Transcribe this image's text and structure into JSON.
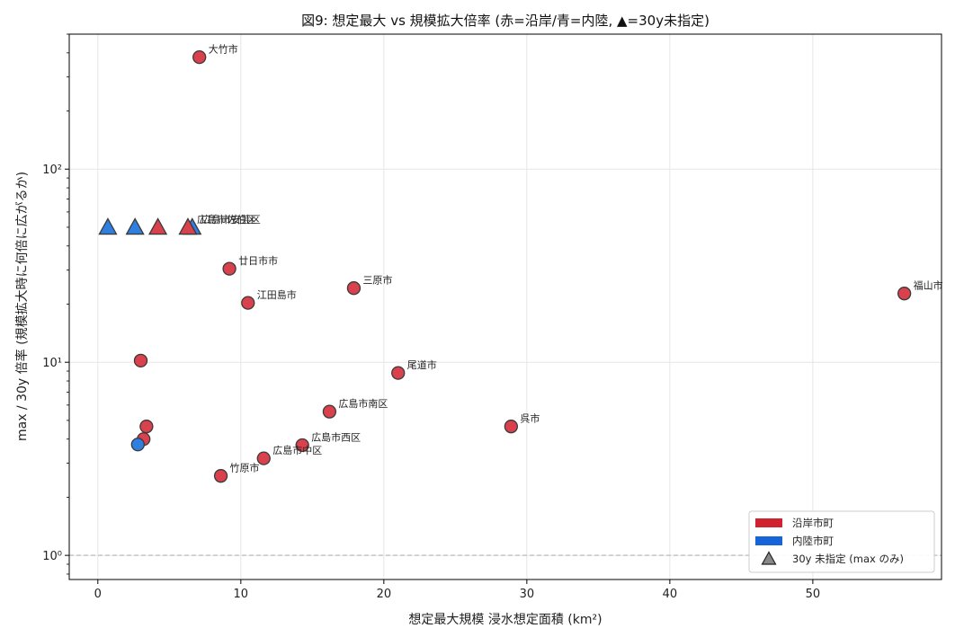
{
  "chart_data": {
    "type": "scatter",
    "title": "図9: 想定最大 vs 規模拡大倍率 (赤=沿岸/青=内陸, ▲=30y未指定)",
    "xlabel": "想定最大規模 浸水想定面積 (km²)",
    "ylabel": "max / 30y 倍率 (規模拡大時に何倍に広がるか)",
    "x_range": [
      -2,
      59
    ],
    "y_range": [
      0.75,
      500
    ],
    "y_scale": "log",
    "x_ticks": [
      0,
      10,
      20,
      30,
      40,
      50
    ],
    "y_ticks": [
      {
        "value": 1,
        "label": "10⁰"
      },
      {
        "value": 10,
        "label": "10¹"
      },
      {
        "value": 100,
        "label": "10²"
      }
    ],
    "grid": true,
    "reference_line": 1,
    "legend_position": "bottom-right",
    "legend": [
      {
        "label": "沿岸市町",
        "marker": "patch",
        "color": "#d1232f"
      },
      {
        "label": "内陸市町",
        "marker": "patch",
        "color": "#1565d8"
      },
      {
        "label": "30y 未指定 (max のみ)",
        "marker": "triangle",
        "color": "#888888"
      }
    ],
    "colors": {
      "coastal": "#d9414c",
      "inland": "#2f7fe0",
      "edge": "#3a3a3a",
      "ref": "#bbbbbb"
    },
    "points": [
      {
        "x": 7.1,
        "y": 380,
        "group": "coastal",
        "marker": "circle",
        "label": "大竹市"
      },
      {
        "x": 9.2,
        "y": 30.5,
        "group": "coastal",
        "marker": "circle",
        "label": "廿日市市"
      },
      {
        "x": 10.5,
        "y": 20.3,
        "group": "coastal",
        "marker": "circle",
        "label": "江田島市"
      },
      {
        "x": 17.9,
        "y": 24.2,
        "group": "coastal",
        "marker": "circle",
        "label": "三原市"
      },
      {
        "x": 56.4,
        "y": 22.7,
        "group": "coastal",
        "marker": "circle",
        "label": "福山市"
      },
      {
        "x": 3.0,
        "y": 10.2,
        "group": "coastal",
        "marker": "circle",
        "label": ""
      },
      {
        "x": 21.0,
        "y": 8.8,
        "group": "coastal",
        "marker": "circle",
        "label": "尾道市"
      },
      {
        "x": 16.2,
        "y": 5.55,
        "group": "coastal",
        "marker": "circle",
        "label": "広島市南区"
      },
      {
        "x": 28.9,
        "y": 4.65,
        "group": "coastal",
        "marker": "circle",
        "label": "呉市"
      },
      {
        "x": 3.4,
        "y": 4.65,
        "group": "coastal",
        "marker": "circle",
        "label": ""
      },
      {
        "x": 3.2,
        "y": 4.0,
        "group": "coastal",
        "marker": "circle",
        "label": ""
      },
      {
        "x": 14.3,
        "y": 3.72,
        "group": "coastal",
        "marker": "circle",
        "label": "広島市西区"
      },
      {
        "x": 11.6,
        "y": 3.18,
        "group": "coastal",
        "marker": "circle",
        "label": "広島市中区"
      },
      {
        "x": 8.6,
        "y": 2.58,
        "group": "coastal",
        "marker": "circle",
        "label": "竹原市"
      },
      {
        "x": 2.8,
        "y": 3.75,
        "group": "inland",
        "marker": "circle",
        "label": ""
      },
      {
        "x": 0.7,
        "y": 50,
        "group": "inland",
        "marker": "triangle",
        "label": ""
      },
      {
        "x": 2.6,
        "y": 50,
        "group": "inland",
        "marker": "triangle",
        "label": ""
      },
      {
        "x": 4.2,
        "y": 50,
        "group": "coastal",
        "marker": "triangle",
        "label": ""
      },
      {
        "x": 6.6,
        "y": 50,
        "group": "inland",
        "marker": "triangle",
        "label": "広島市安芸区"
      },
      {
        "x": 6.3,
        "y": 50,
        "group": "coastal",
        "marker": "triangle",
        "label": "広島市佐伯区"
      }
    ]
  }
}
